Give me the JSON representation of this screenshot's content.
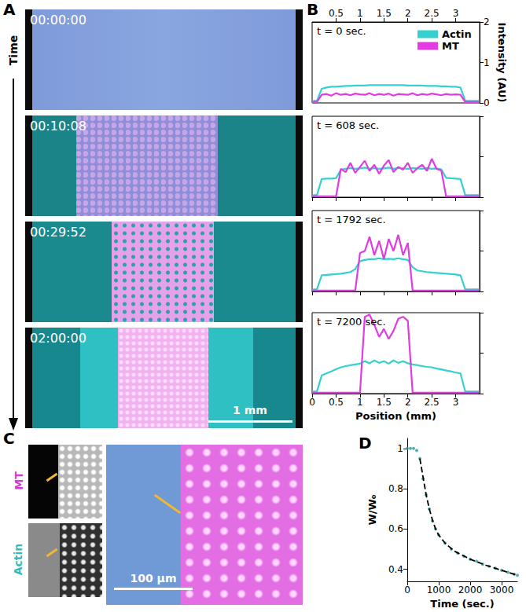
{
  "panel_labels": [
    "A",
    "B",
    "C",
    "D"
  ],
  "panel_a": {
    "axis_label": "Time",
    "timestamps": [
      "00:00:00",
      "00:10:08",
      "00:29:52",
      "02:00:00"
    ],
    "scale_bar": "1 mm"
  },
  "panel_c": {
    "channel_labels": [
      "MT",
      "Actin"
    ],
    "scale_bar": "100 µm"
  },
  "chart_data": [
    {
      "type": "line",
      "annotation": "t = 0 sec.",
      "y_label": "Intensity (AU)",
      "legend": "upper right",
      "tick_labels": true,
      "xlim": [
        0,
        3.5
      ],
      "ylim": [
        0,
        2
      ],
      "xticks": [
        0.5,
        1,
        1.5,
        2,
        2.5,
        3
      ],
      "yticks": [
        0,
        1,
        2
      ],
      "x": [
        0,
        0.1,
        0.2,
        0.3,
        0.4,
        0.5,
        0.6,
        0.7,
        0.8,
        0.9,
        1,
        1.1,
        1.2,
        1.3,
        1.4,
        1.5,
        1.6,
        1.7,
        1.8,
        1.9,
        2,
        2.1,
        2.2,
        2.3,
        2.4,
        2.5,
        2.6,
        2.7,
        2.8,
        2.9,
        3,
        3.1,
        3.2,
        3.3,
        3.4,
        3.5
      ],
      "series": [
        {
          "name": "Actin",
          "color": "#35d0d0",
          "values": [
            0.05,
            0.05,
            0.35,
            0.38,
            0.4,
            0.4,
            0.41,
            0.42,
            0.42,
            0.43,
            0.43,
            0.43,
            0.44,
            0.44,
            0.44,
            0.44,
            0.44,
            0.44,
            0.44,
            0.44,
            0.43,
            0.43,
            0.43,
            0.43,
            0.42,
            0.42,
            0.42,
            0.41,
            0.41,
            0.4,
            0.4,
            0.38,
            0.05,
            0.05,
            0.05,
            0.05
          ]
        },
        {
          "name": "MT",
          "color": "#e23be2",
          "values": [
            0.02,
            0.02,
            0.2,
            0.22,
            0.18,
            0.24,
            0.2,
            0.22,
            0.19,
            0.23,
            0.21,
            0.2,
            0.24,
            0.19,
            0.22,
            0.2,
            0.23,
            0.18,
            0.22,
            0.21,
            0.2,
            0.24,
            0.19,
            0.22,
            0.2,
            0.23,
            0.21,
            0.19,
            0.22,
            0.2,
            0.21,
            0.2,
            0.02,
            0.02,
            0.02,
            0.02
          ]
        }
      ]
    },
    {
      "type": "line",
      "annotation": "t = 608 sec.",
      "tick_labels": false,
      "xlim": [
        0,
        3.5
      ],
      "ylim": [
        0,
        2
      ],
      "xticks": [
        0,
        0.5,
        1,
        1.5,
        2,
        2.5,
        3
      ],
      "yticks": [
        0,
        1,
        2
      ],
      "x": [
        0,
        0.1,
        0.2,
        0.3,
        0.4,
        0.5,
        0.6,
        0.7,
        0.8,
        0.9,
        1,
        1.1,
        1.2,
        1.3,
        1.4,
        1.5,
        1.6,
        1.7,
        1.8,
        1.9,
        2,
        2.1,
        2.2,
        2.3,
        2.4,
        2.5,
        2.6,
        2.7,
        2.8,
        2.9,
        3,
        3.1,
        3.2,
        3.3,
        3.4,
        3.5
      ],
      "series": [
        {
          "name": "Actin",
          "color": "#35d0d0",
          "values": [
            0.05,
            0.05,
            0.45,
            0.46,
            0.46,
            0.47,
            0.68,
            0.7,
            0.72,
            0.7,
            0.71,
            0.73,
            0.7,
            0.72,
            0.7,
            0.71,
            0.73,
            0.7,
            0.72,
            0.71,
            0.7,
            0.72,
            0.71,
            0.7,
            0.72,
            0.7,
            0.71,
            0.69,
            0.48,
            0.47,
            0.46,
            0.45,
            0.05,
            0.05,
            0.05,
            0.05
          ]
        },
        {
          "name": "MT",
          "color": "#e23be2",
          "values": [
            0.02,
            0.02,
            0.02,
            0.02,
            0.02,
            0.02,
            0.7,
            0.62,
            0.85,
            0.6,
            0.75,
            0.9,
            0.65,
            0.8,
            0.58,
            0.78,
            0.92,
            0.62,
            0.75,
            0.68,
            0.85,
            0.6,
            0.72,
            0.8,
            0.65,
            0.95,
            0.7,
            0.66,
            0.02,
            0.02,
            0.02,
            0.02,
            0.02,
            0.02,
            0.02,
            0.02
          ]
        }
      ]
    },
    {
      "type": "line",
      "annotation": "t = 1792 sec.",
      "tick_labels": false,
      "xlim": [
        0,
        3.5
      ],
      "ylim": [
        0,
        2
      ],
      "xticks": [
        0,
        0.5,
        1,
        1.5,
        2,
        2.5,
        3
      ],
      "yticks": [
        0,
        1,
        2
      ],
      "x": [
        0,
        0.1,
        0.2,
        0.3,
        0.4,
        0.5,
        0.6,
        0.7,
        0.8,
        0.9,
        1,
        1.1,
        1.2,
        1.3,
        1.4,
        1.5,
        1.6,
        1.7,
        1.8,
        1.9,
        2,
        2.1,
        2.2,
        2.3,
        2.4,
        2.5,
        2.6,
        2.7,
        2.8,
        2.9,
        3,
        3.1,
        3.2,
        3.3,
        3.4,
        3.5
      ],
      "series": [
        {
          "name": "Actin",
          "color": "#35d0d0",
          "values": [
            0.05,
            0.05,
            0.4,
            0.41,
            0.42,
            0.43,
            0.44,
            0.46,
            0.48,
            0.55,
            0.75,
            0.78,
            0.8,
            0.8,
            0.82,
            0.8,
            0.81,
            0.8,
            0.82,
            0.8,
            0.78,
            0.6,
            0.52,
            0.5,
            0.48,
            0.47,
            0.46,
            0.45,
            0.44,
            0.43,
            0.42,
            0.4,
            0.05,
            0.05,
            0.05,
            0.05
          ]
        },
        {
          "name": "MT",
          "color": "#e23be2",
          "values": [
            0.02,
            0.02,
            0.02,
            0.02,
            0.02,
            0.02,
            0.02,
            0.02,
            0.02,
            0.02,
            0.95,
            1.0,
            1.35,
            0.9,
            1.25,
            0.8,
            1.3,
            1.0,
            1.4,
            0.9,
            1.2,
            0.02,
            0.02,
            0.02,
            0.02,
            0.02,
            0.02,
            0.02,
            0.02,
            0.02,
            0.02,
            0.02,
            0.02,
            0.02,
            0.02,
            0.02
          ]
        }
      ]
    },
    {
      "type": "line",
      "annotation": "t = 7200 sec.",
      "x_label": "Position (mm)",
      "tick_labels": "x",
      "xlim": [
        0,
        3.5
      ],
      "ylim": [
        0,
        2
      ],
      "xticks": [
        0,
        0.5,
        1,
        1.5,
        2,
        2.5,
        3
      ],
      "yticks": [
        0,
        1,
        2
      ],
      "x": [
        0,
        0.1,
        0.2,
        0.3,
        0.4,
        0.5,
        0.6,
        0.7,
        0.8,
        0.9,
        1,
        1.1,
        1.2,
        1.3,
        1.4,
        1.5,
        1.6,
        1.7,
        1.8,
        1.9,
        2,
        2.1,
        2.2,
        2.3,
        2.4,
        2.5,
        2.6,
        2.7,
        2.8,
        2.9,
        3,
        3.1,
        3.2,
        3.3,
        3.4,
        3.5
      ],
      "series": [
        {
          "name": "Actin",
          "color": "#35d0d0",
          "values": [
            0.05,
            0.05,
            0.45,
            0.5,
            0.55,
            0.6,
            0.65,
            0.68,
            0.7,
            0.72,
            0.74,
            0.8,
            0.75,
            0.82,
            0.76,
            0.8,
            0.74,
            0.82,
            0.76,
            0.8,
            0.75,
            0.72,
            0.7,
            0.68,
            0.66,
            0.65,
            0.62,
            0.6,
            0.57,
            0.55,
            0.52,
            0.5,
            0.05,
            0.05,
            0.05,
            0.05
          ]
        },
        {
          "name": "MT",
          "color": "#e23be2",
          "values": [
            0.02,
            0.02,
            0.02,
            0.02,
            0.02,
            0.02,
            0.02,
            0.02,
            0.02,
            0.02,
            0.02,
            1.9,
            1.95,
            1.7,
            1.4,
            1.6,
            1.35,
            1.55,
            1.85,
            1.9,
            1.8,
            0.02,
            0.02,
            0.02,
            0.02,
            0.02,
            0.02,
            0.02,
            0.02,
            0.02,
            0.02,
            0.02,
            0.02,
            0.02,
            0.02,
            0.02
          ]
        }
      ]
    },
    {
      "type": "line",
      "x_label": "Time (sec.)",
      "y_label": "W/W₀",
      "tick_labels": true,
      "xlim": [
        0,
        3500
      ],
      "ylim": [
        0.34,
        1.05
      ],
      "xticks": [
        0,
        1000,
        2000,
        3000
      ],
      "yticks": [
        0.4,
        0.6,
        0.8,
        1
      ],
      "series": [
        {
          "type": "scatter",
          "color": "#2a9d9d",
          "marker": "circle",
          "x": [
            0,
            100,
            200,
            300,
            400,
            500,
            600,
            700,
            800,
            900,
            1000,
            1200,
            1400,
            1600,
            1800,
            2000,
            2200,
            2400,
            2600,
            2800,
            3000,
            3200,
            3400,
            3500
          ],
          "values": [
            1,
            1,
            1,
            0.99,
            0.95,
            0.85,
            0.77,
            0.7,
            0.64,
            0.6,
            0.57,
            0.53,
            0.5,
            0.48,
            0.465,
            0.45,
            0.44,
            0.425,
            0.415,
            0.405,
            0.395,
            0.385,
            0.375,
            0.37
          ]
        },
        {
          "type": "line",
          "color": "#000000",
          "line_style": "dashed",
          "x": [
            400,
            500,
            600,
            700,
            800,
            900,
            1000,
            1200,
            1500,
            2000,
            2500,
            3000,
            3500
          ],
          "values": [
            0.95,
            0.86,
            0.77,
            0.7,
            0.645,
            0.6,
            0.57,
            0.53,
            0.49,
            0.45,
            0.42,
            0.395,
            0.37
          ]
        }
      ]
    }
  ]
}
